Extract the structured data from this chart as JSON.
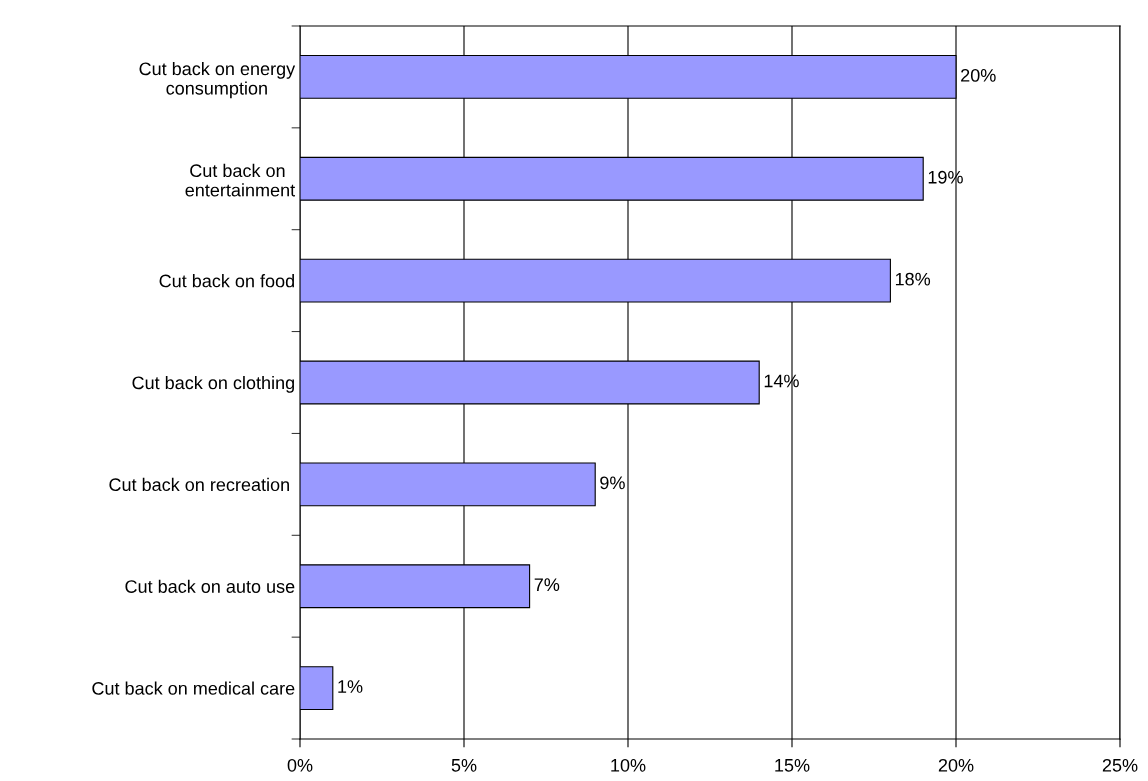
{
  "chart_data": {
    "type": "bar",
    "orientation": "horizontal",
    "categories": [
      "Cut back on energy\nconsumption",
      "Cut back on \nentertainment",
      "Cut back on food",
      "Cut back on clothing",
      "Cut back on recreation ",
      "Cut back on auto use",
      "Cut back on medical care"
    ],
    "values": [
      20,
      19,
      18,
      14,
      9,
      7,
      1
    ],
    "value_labels": [
      "20%",
      "19%",
      "18%",
      "14%",
      "9%",
      "7%",
      "1%"
    ],
    "color": "#9999ff",
    "xlim": [
      0,
      25
    ],
    "xticks": [
      {
        "value": 0,
        "label": "0%"
      },
      {
        "value": 5,
        "label": "5%"
      },
      {
        "value": 10,
        "label": "10%"
      },
      {
        "value": 15,
        "label": "15%"
      },
      {
        "value": 20,
        "label": "20%"
      },
      {
        "value": 25,
        "label": "25%"
      }
    ],
    "grid": "x",
    "legend": false
  }
}
